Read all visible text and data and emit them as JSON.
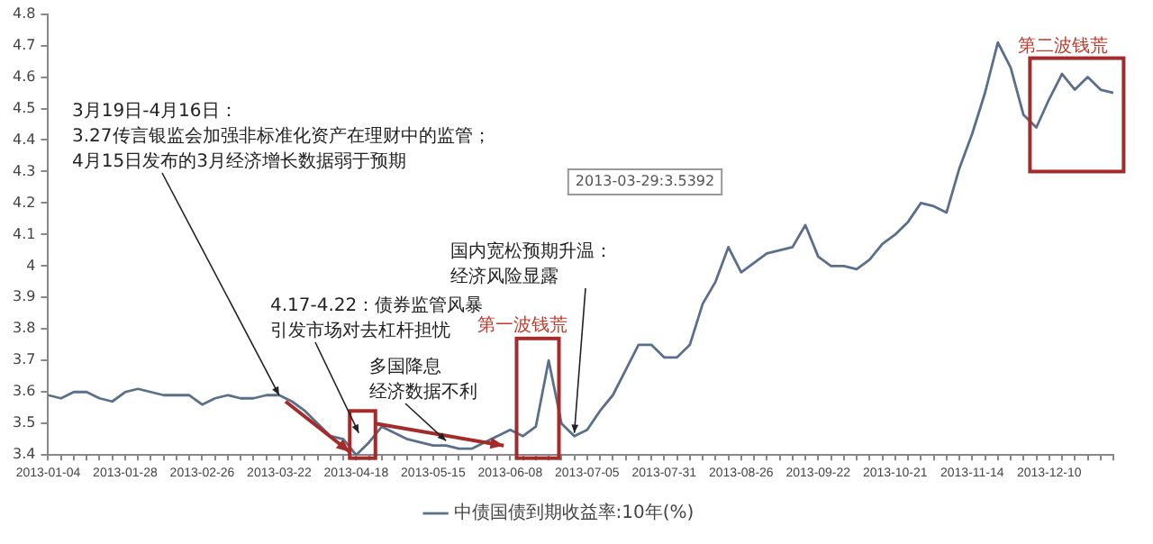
{
  "chart_data": {
    "type": "line",
    "categories": [
      "2013-01-04",
      null,
      null,
      null,
      null,
      null,
      "2013-01-28",
      null,
      null,
      null,
      null,
      null,
      "2013-02-26",
      null,
      null,
      null,
      null,
      null,
      "2013-03-22",
      null,
      null,
      null,
      null,
      null,
      "2013-04-18",
      null,
      null,
      null,
      null,
      null,
      "2013-05-15",
      null,
      null,
      null,
      null,
      null,
      "2013-06-08",
      null,
      null,
      null,
      null,
      null,
      "2013-07-05",
      null,
      null,
      null,
      null,
      null,
      "2013-07-31",
      null,
      null,
      null,
      null,
      null,
      "2013-08-26",
      null,
      null,
      null,
      null,
      null,
      "2013-09-22",
      null,
      null,
      null,
      null,
      null,
      "2013-10-21",
      null,
      null,
      null,
      null,
      null,
      "2013-11-14",
      null,
      null,
      null,
      null,
      null,
      "2013-12-10",
      null,
      null,
      null,
      null,
      null
    ],
    "series": [
      {
        "name": "中债国债到期收益率:10年(%)",
        "color": "#5a6f8a",
        "values": [
          3.59,
          3.58,
          3.6,
          3.6,
          3.58,
          3.57,
          3.6,
          3.61,
          3.6,
          3.59,
          3.59,
          3.59,
          3.56,
          3.58,
          3.59,
          3.58,
          3.58,
          3.59,
          3.59,
          3.57,
          3.54,
          3.5,
          3.46,
          3.45,
          3.4,
          3.44,
          3.49,
          3.47,
          3.45,
          3.44,
          3.43,
          3.43,
          3.42,
          3.42,
          3.44,
          3.46,
          3.48,
          3.46,
          3.49,
          3.7,
          3.5,
          3.46,
          3.48,
          3.54,
          3.59,
          3.67,
          3.75,
          3.75,
          3.71,
          3.71,
          3.75,
          3.88,
          3.95,
          4.06,
          3.98,
          4.01,
          4.04,
          4.05,
          4.06,
          4.13,
          4.03,
          4.0,
          4.0,
          3.99,
          4.02,
          4.07,
          4.1,
          4.14,
          4.2,
          4.19,
          4.17,
          4.31,
          4.42,
          4.55,
          4.71,
          4.63,
          4.48,
          4.44,
          4.53,
          4.61,
          4.56,
          4.6,
          4.56,
          4.55
        ]
      }
    ],
    "ylim": [
      3.4,
      4.8
    ],
    "yticks": [
      3.4,
      3.5,
      3.6,
      3.7,
      3.8,
      3.9,
      4,
      4.1,
      4.2,
      4.3,
      4.4,
      4.5,
      4.6,
      4.7,
      4.8
    ],
    "grid": false,
    "legend": "bottom",
    "marker": "none",
    "line_style": "solid",
    "annotations": [
      "2013-03-29:3.5392",
      "3月19日-4月16日：",
      "3.27传言银监会加强非标准化资产在理财中的监管；",
      {
        "text": "4月15日发布的3月经济增长数据弱于预期",
        "x": "2013-03-22",
        "y": 3.59
      },
      "4.17-4.22：债券监管风暴",
      "引发市场对去杠杆担忧",
      "多国降息",
      "经济数据不利",
      "国内宽松预期升温：",
      "经济风险显露",
      "第一波钱荒",
      "第二波钱荒"
    ]
  }
}
